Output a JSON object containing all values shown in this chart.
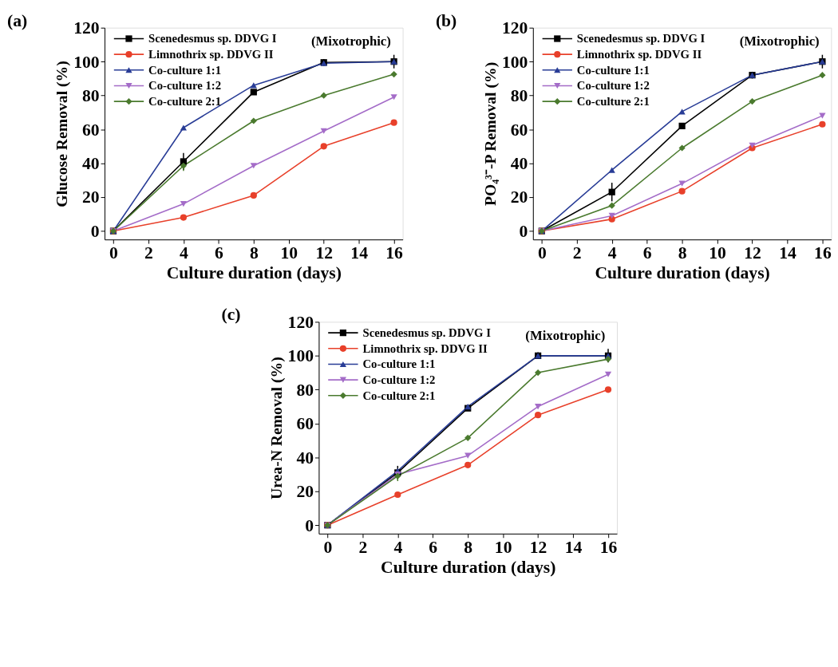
{
  "chart_data": [
    {
      "type": "line",
      "title": "(a)",
      "xlabel": "Culture duration (days)",
      "ylabel": "Glucose Removal (%)",
      "annotations": [
        "(Mixotrophic)"
      ],
      "x": [
        0,
        4,
        8,
        12,
        16
      ],
      "xlim": [
        -0.5,
        16.5
      ],
      "xticks": [
        0,
        2,
        4,
        6,
        8,
        10,
        12,
        14,
        16
      ],
      "ylim": [
        -5,
        120
      ],
      "yticks": [
        0,
        20,
        40,
        60,
        80,
        100,
        120
      ],
      "grid": false,
      "legend": "top left",
      "line_style": "solid",
      "series": [
        {
          "name": "Scenedesmus sp. DDVG I",
          "color": "#000000",
          "marker": "square",
          "values": [
            0,
            41,
            82,
            99.5,
            100
          ],
          "errors": [
            null,
            5,
            null,
            2,
            4
          ]
        },
        {
          "name": "Limnothrix sp. DDVG II",
          "color": "#e8402a",
          "marker": "circle",
          "values": [
            0,
            8,
            21,
            50,
            64
          ]
        },
        {
          "name": "Co-culture 1:1",
          "color": "#283c96",
          "marker": "triangle",
          "values": [
            0,
            61,
            86,
            99,
            100
          ]
        },
        {
          "name": "Co-culture 1:2",
          "color": "#a46cc8",
          "marker": "triangle-down",
          "values": [
            0,
            16,
            38.5,
            59,
            79
          ]
        },
        {
          "name": "Co-culture 2:1",
          "color": "#4a7a2e",
          "marker": "diamond",
          "values": [
            0,
            38.5,
            65,
            80,
            92.5
          ],
          "errors": [
            null,
            3,
            null,
            null,
            null
          ]
        }
      ]
    },
    {
      "type": "line",
      "title": "(b)",
      "xlabel": "Culture duration (days)",
      "ylabel": "PO₄³⁻-P Removal (%)",
      "annotations": [
        "(Mixotrophic)"
      ],
      "x": [
        0,
        4,
        8,
        12,
        16
      ],
      "xlim": [
        -0.5,
        16.5
      ],
      "xticks": [
        0,
        2,
        4,
        6,
        8,
        10,
        12,
        14,
        16
      ],
      "ylim": [
        -5,
        120
      ],
      "yticks": [
        0,
        20,
        40,
        60,
        80,
        100,
        120
      ],
      "grid": false,
      "legend": "top left",
      "line_style": "solid",
      "series": [
        {
          "name": "Scenedesmus sp. DDVG I",
          "color": "#000000",
          "marker": "square",
          "values": [
            0,
            23,
            62,
            92,
            100
          ],
          "errors": [
            null,
            5.5,
            null,
            2,
            4
          ]
        },
        {
          "name": "Limnothrix sp. DDVG II",
          "color": "#e8402a",
          "marker": "circle",
          "values": [
            0,
            7,
            23.5,
            49,
            63
          ]
        },
        {
          "name": "Co-culture 1:1",
          "color": "#283c96",
          "marker": "triangle",
          "values": [
            0,
            36,
            70.5,
            92,
            100
          ]
        },
        {
          "name": "Co-culture 1:2",
          "color": "#a46cc8",
          "marker": "triangle-down",
          "values": [
            0,
            9,
            28,
            50.5,
            68
          ]
        },
        {
          "name": "Co-culture 2:1",
          "color": "#4a7a2e",
          "marker": "diamond",
          "values": [
            0,
            15,
            49,
            76.5,
            92
          ]
        }
      ]
    },
    {
      "type": "line",
      "title": "(c)",
      "xlabel": "Culture duration (days)",
      "ylabel": "Urea-N Removal (%)",
      "annotations": [
        "(Mixotrophic)"
      ],
      "x": [
        0,
        4,
        8,
        12,
        16
      ],
      "xlim": [
        -0.5,
        16.5
      ],
      "xticks": [
        0,
        2,
        4,
        6,
        8,
        10,
        12,
        14,
        16
      ],
      "ylim": [
        -5,
        120
      ],
      "yticks": [
        0,
        20,
        40,
        60,
        80,
        100,
        120
      ],
      "grid": false,
      "legend": "top left",
      "line_style": "solid",
      "series": [
        {
          "name": "Scenedesmus sp. DDVG I",
          "color": "#000000",
          "marker": "square",
          "values": [
            0,
            31,
            69,
            100,
            100
          ],
          "errors": [
            null,
            4,
            null,
            2,
            4
          ]
        },
        {
          "name": "Limnothrix sp. DDVG II",
          "color": "#e8402a",
          "marker": "circle",
          "values": [
            0,
            18,
            35.5,
            65,
            80
          ]
        },
        {
          "name": "Co-culture 1:1",
          "color": "#283c96",
          "marker": "triangle",
          "values": [
            0,
            32,
            70,
            100,
            100
          ]
        },
        {
          "name": "Co-culture 1:2",
          "color": "#a46cc8",
          "marker": "triangle-down",
          "values": [
            0,
            30,
            41,
            70,
            89
          ]
        },
        {
          "name": "Co-culture 2:1",
          "color": "#4a7a2e",
          "marker": "diamond",
          "values": [
            0,
            29,
            51.5,
            90,
            98
          ],
          "errors": [
            null,
            3,
            null,
            null,
            null
          ]
        }
      ]
    }
  ]
}
